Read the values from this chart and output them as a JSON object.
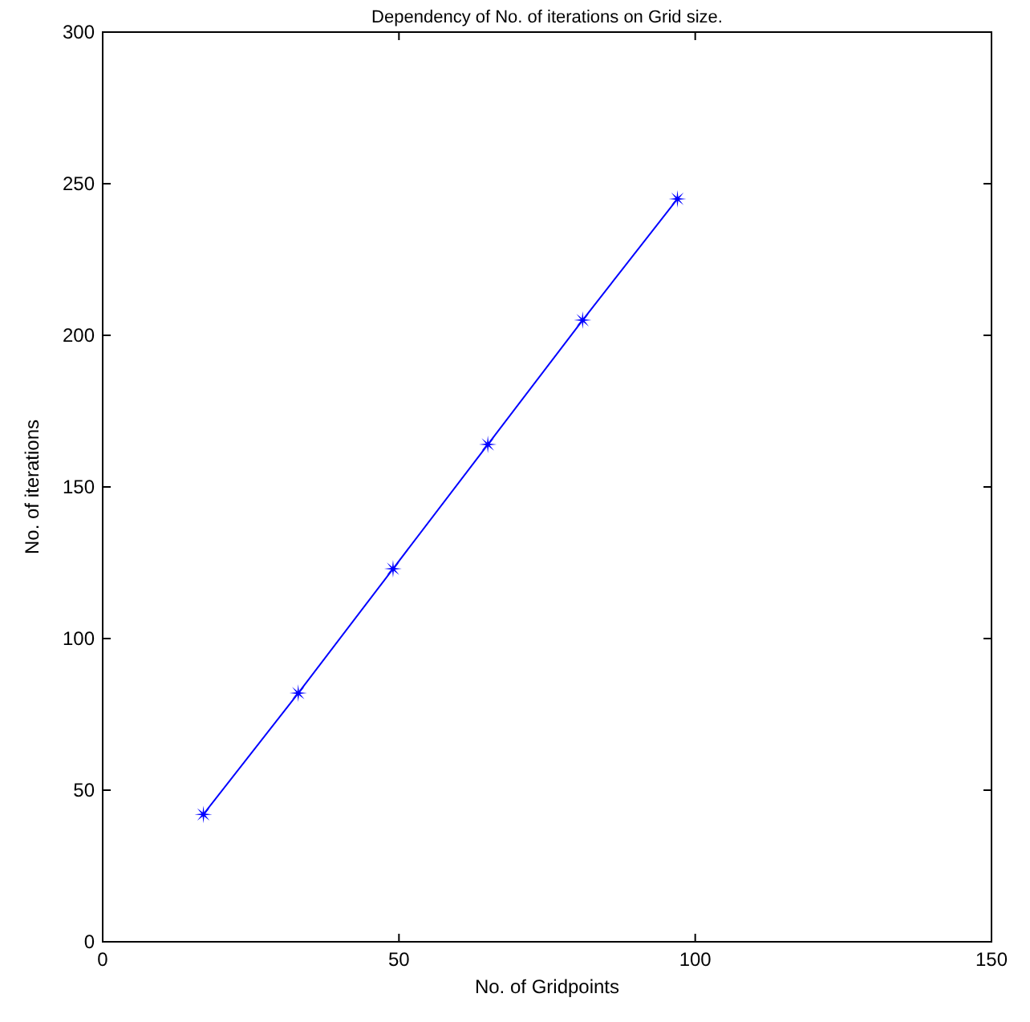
{
  "chart_data": {
    "type": "line",
    "title": "Dependency of No. of iterations on Grid size.",
    "xlabel": "No. of Gridpoints",
    "ylabel": "No. of iterations",
    "x": [
      17,
      33,
      49,
      65,
      81,
      97
    ],
    "series": [
      {
        "color": "#0000ff",
        "values": [
          42,
          82,
          123,
          164,
          205,
          245
        ]
      }
    ],
    "xlim": [
      0,
      150
    ],
    "xticks": [
      0,
      50,
      100,
      150
    ],
    "ylim": [
      0,
      300
    ],
    "yticks": [
      0,
      50,
      100,
      150,
      200,
      250,
      300
    ],
    "grid": false,
    "marker": "star",
    "line_style": "solid"
  }
}
